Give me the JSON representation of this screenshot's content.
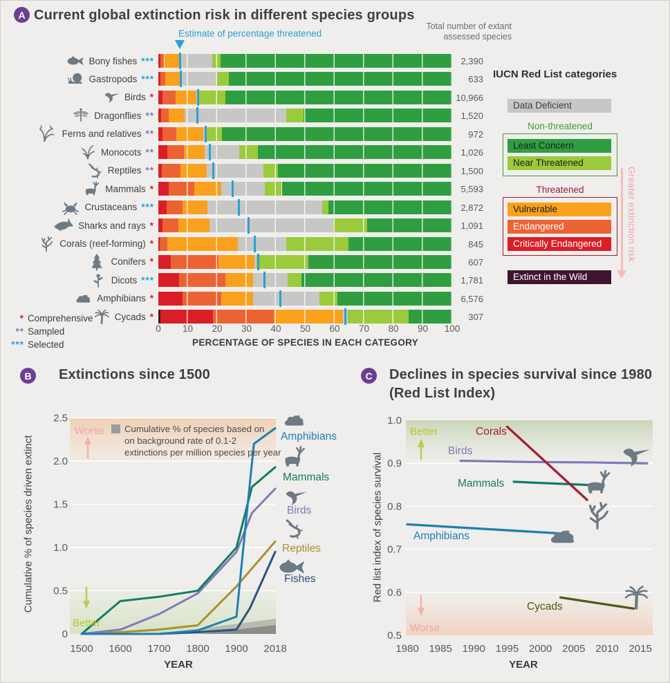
{
  "page": {
    "background": "#efeeec"
  },
  "panelA": {
    "badge": "A",
    "estimate_label": "Estimate of percentage threatened",
    "estimate_marker_pct": 7.3,
    "total_header_line1": "Total number of extant",
    "total_header_line2": "assessed species",
    "footnotes": [
      {
        "stars": "*",
        "label": "Comprehensive",
        "type": "comprehensive"
      },
      {
        "stars": "**",
        "label": "Sampled",
        "type": "sampled"
      },
      {
        "stars": "***",
        "label": "Selected",
        "type": "selected"
      }
    ],
    "star_colors": {
      "comprehensive": "#c1272d",
      "sampled": "#8078b6",
      "selected": "#2b9fd9"
    },
    "tick_color": "#2b9fd9",
    "icon_color": "#6d7983"
  },
  "legend": {
    "title": "IUCN Red List categories",
    "data_deficient": {
      "label": "Data Deficient",
      "bg": "#c7c7c5",
      "fg": "#3d3d3f"
    },
    "groups": [
      {
        "heading": "Non-threatened",
        "color": "#3f9c35",
        "items": [
          {
            "label": "Least Concern",
            "bg": "#2f9e41",
            "fg": "#1e1e1c"
          },
          {
            "label": "Near Threatened",
            "bg": "#9bca3c",
            "fg": "#1e1e1c"
          }
        ]
      },
      {
        "heading": "Threatened",
        "color": "#9e1b32",
        "items": [
          {
            "label": "Vulnerable",
            "bg": "#f9a11d",
            "fg": "#1e1e1c"
          },
          {
            "label": "Endangered",
            "bg": "#ec6333",
            "fg": "#ffffff"
          },
          {
            "label": "Critically Endangered",
            "bg": "#da1e27",
            "fg": "#ffffff"
          }
        ]
      }
    ],
    "extinct_wild": {
      "label": "Extinct in the Wild",
      "bg": "#3f1430",
      "fg": "#ffffff"
    },
    "risk_arrow_label": "Greater extinction risk",
    "risk_arrow_color": "#f5bcbc"
  },
  "panelB": {
    "badge": "B"
  },
  "panelC": {
    "badge": "C",
    "title_line1": "Declines in species survival since 1980",
    "title_line2": "(Red List Index)"
  },
  "chart_data": [
    {
      "id": "A",
      "type": "bar",
      "stacked": true,
      "orientation": "horizontal",
      "title": "Current global extinction risk in different species groups",
      "xlabel": "PERCENTAGE OF SPECIES IN EACH CATEGORY",
      "xlim": [
        0,
        100
      ],
      "xticks": [
        0,
        10,
        20,
        30,
        40,
        50,
        60,
        70,
        80,
        90,
        100
      ],
      "categories": [
        "Bony fishes",
        "Gastropods",
        "Birds",
        "Dragonflies",
        "Ferns and relatives",
        "Monocots",
        "Reptiles",
        "Mammals",
        "Crustaceans",
        "Sharks and rays",
        "Corals (reef-forming)",
        "Conifers",
        "Dicots",
        "Amphibians",
        "Cycads"
      ],
      "category_stars": [
        "***",
        "***",
        "*",
        "**",
        "**",
        "**",
        "**",
        "*",
        "***",
        "*",
        "*",
        "*",
        "***",
        "*",
        "*"
      ],
      "star_types": [
        "selected",
        "selected",
        "comprehensive",
        "sampled",
        "sampled",
        "sampled",
        "sampled",
        "comprehensive",
        "selected",
        "comprehensive",
        "comprehensive",
        "comprehensive",
        "selected",
        "comprehensive",
        "comprehensive"
      ],
      "icons": [
        "fish",
        "snail",
        "hummingbird",
        "dragonfly",
        "fern",
        "grass",
        "lizard",
        "deer",
        "crab",
        "shark",
        "coral",
        "conifer",
        "dicot",
        "frog",
        "palm"
      ],
      "totals": [
        "2,390",
        "633",
        "10,966",
        "1,520",
        "972",
        "1,026",
        "1,500",
        "5,593",
        "2,872",
        "1,091",
        "845",
        "607",
        "1,781",
        "6,576",
        "307"
      ],
      "threatened_estimate_pct": [
        7.3,
        7.6,
        13.6,
        13.4,
        16.2,
        17.5,
        18.8,
        25.2,
        27.5,
        30.6,
        32.9,
        34.0,
        36.2,
        41.6,
        63.6
      ],
      "series": [
        {
          "name": "Extinct in the Wild",
          "key": "EW",
          "color": "#3f1430",
          "values": [
            0,
            0,
            0,
            0,
            0,
            0,
            0,
            0,
            0,
            0,
            0,
            0,
            0,
            0,
            0.7
          ]
        },
        {
          "name": "Critically Endangered",
          "key": "CR",
          "color": "#da1e27",
          "values": [
            0.7,
            0.8,
            1.5,
            1.0,
            1.5,
            3.0,
            1.2,
            3.6,
            2.8,
            1.5,
            0.5,
            4.2,
            7.0,
            8.2,
            17.8
          ]
        },
        {
          "name": "Endangered",
          "key": "EN",
          "color": "#ec6333",
          "values": [
            1.3,
            1.5,
            4.4,
            2.6,
            4.7,
            5.7,
            6.3,
            8.6,
            5.4,
            5.3,
            2.5,
            16.3,
            15.8,
            13.2,
            20.8
          ]
        },
        {
          "name": "Vulnerable",
          "key": "VU",
          "color": "#f9a11d",
          "values": [
            5.0,
            5.0,
            7.1,
            5.4,
            9.1,
            7.1,
            8.9,
            9.2,
            8.5,
            10.6,
            24.0,
            12.1,
            9.4,
            10.8,
            23.5
          ]
        },
        {
          "name": "Data Deficient",
          "key": "DD",
          "color": "#c7c7c5",
          "values": [
            11.4,
            12.5,
            0.8,
            34.5,
            0.9,
            11.7,
            19.4,
            14.8,
            39.1,
            42.1,
            16.5,
            0.9,
            11.8,
            22.6,
            1.7
          ]
        },
        {
          "name": "Near Threatened",
          "key": "NT",
          "color": "#9bca3c",
          "values": [
            2.8,
            4.2,
            9.0,
            5.9,
            5.4,
            6.3,
            4.9,
            5.8,
            2.1,
            11.6,
            21.3,
            17.6,
            4.7,
            6.1,
            20.7
          ]
        },
        {
          "name": "Least Concern",
          "key": "LC",
          "color": "#2f9e41",
          "values": [
            78.8,
            76.0,
            77.2,
            50.6,
            78.4,
            66.2,
            59.3,
            58.0,
            42.1,
            28.9,
            35.2,
            48.9,
            51.3,
            39.1,
            14.8
          ]
        }
      ]
    },
    {
      "id": "B",
      "type": "line",
      "title": "Extinctions since 1500",
      "xlabel": "YEAR",
      "ylabel": "Cumulative % of species driven extinct",
      "x_categories": [
        1500,
        1600,
        1700,
        1800,
        1900,
        2018
      ],
      "x_axis_note": "categorical equal spacing; series points are [tick_index, value] pairs, fractional index interpolates between ticks",
      "ylim": [
        0,
        2.5
      ],
      "yticks": [
        0,
        0.5,
        1.0,
        1.5,
        2.0,
        2.5
      ],
      "series": [
        {
          "name": "Amphibians",
          "color": "#1d7fb4",
          "icon": "frog",
          "points": [
            [
              0,
              0
            ],
            [
              1,
              0
            ],
            [
              2,
              0
            ],
            [
              3,
              0.04
            ],
            [
              4,
              0.2
            ],
            [
              4.2,
              1.1
            ],
            [
              4.45,
              2.2
            ],
            [
              5,
              2.38
            ]
          ]
        },
        {
          "name": "Mammals",
          "color": "#117c66",
          "icon": "deer",
          "points": [
            [
              0,
              0
            ],
            [
              1,
              0.38
            ],
            [
              2,
              0.43
            ],
            [
              3,
              0.5
            ],
            [
              4,
              1.0
            ],
            [
              4.4,
              1.7
            ],
            [
              5,
              1.93
            ]
          ]
        },
        {
          "name": "Birds",
          "color": "#8279b6",
          "icon": "hummingbird",
          "points": [
            [
              0,
              0
            ],
            [
              1,
              0.05
            ],
            [
              2,
              0.23
            ],
            [
              3,
              0.47
            ],
            [
              4,
              0.95
            ],
            [
              4.4,
              1.4
            ],
            [
              5,
              1.68
            ]
          ]
        },
        {
          "name": "Reptiles",
          "color": "#a8902f",
          "icon": "lizard",
          "points": [
            [
              0,
              0
            ],
            [
              1,
              0.02
            ],
            [
              2,
              0.05
            ],
            [
              3,
              0.1
            ],
            [
              4,
              0.55
            ],
            [
              5,
              1.07
            ]
          ]
        },
        {
          "name": "Fishes",
          "color": "#2c5183",
          "icon": "fish",
          "points": [
            [
              0,
              0
            ],
            [
              1,
              0
            ],
            [
              2,
              0
            ],
            [
              3,
              0.02
            ],
            [
              4,
              0.05
            ],
            [
              4.35,
              0.3
            ],
            [
              5,
              0.95
            ]
          ]
        }
      ],
      "annotations": {
        "worse": {
          "text": "Worse",
          "color": "#f0a3a6"
        },
        "better": {
          "text": "Better",
          "color": "#b5c832"
        },
        "note_swatch_color": "#9b9b99",
        "background_note": "Cumulative % of species based on\non background rate of 0.1-2\nextinctions per million species per year",
        "background_band_colors": {
          "light": "#b7bbb1",
          "dark": "#8a8f86"
        }
      }
    },
    {
      "id": "C",
      "type": "line",
      "title": "Declines in species survival since 1980 (Red List Index)",
      "xlabel": "YEAR",
      "ylabel": "Red list index of species survival",
      "xlim": [
        1980,
        2018
      ],
      "xticks": [
        1980,
        1985,
        1990,
        1995,
        2000,
        2005,
        2010,
        2015
      ],
      "ylim": [
        0.5,
        1.0
      ],
      "yticks": [
        0.5,
        0.6,
        0.7,
        0.8,
        0.9,
        1.0
      ],
      "series": [
        {
          "name": "Corals",
          "color": "#a31f34",
          "icon": "coral",
          "points": [
            [
              1995,
              0.985
            ],
            [
              2007,
              0.815
            ]
          ]
        },
        {
          "name": "Birds",
          "color": "#8279b6",
          "icon": "hummingbird",
          "points": [
            [
              1988,
              0.906
            ],
            [
              1998,
              0.903
            ],
            [
              2008,
              0.902
            ],
            [
              2016,
              0.9
            ]
          ]
        },
        {
          "name": "Mammals",
          "color": "#117c66",
          "icon": "deer",
          "points": [
            [
              1996,
              0.857
            ],
            [
              2008,
              0.849
            ]
          ]
        },
        {
          "name": "Amphibians",
          "color": "#1d7fb4",
          "icon": "frog",
          "points": [
            [
              1980,
              0.758
            ],
            [
              2003,
              0.737
            ]
          ]
        },
        {
          "name": "Cycads",
          "color": "#4e5a14",
          "icon": "palm",
          "points": [
            [
              2003,
              0.588
            ],
            [
              2014,
              0.562
            ]
          ]
        }
      ],
      "annotations": {
        "better": {
          "text": "Better",
          "color": "#b5c832"
        },
        "worse": {
          "text": "Worse",
          "color": "#f0a3a6"
        }
      }
    }
  ]
}
